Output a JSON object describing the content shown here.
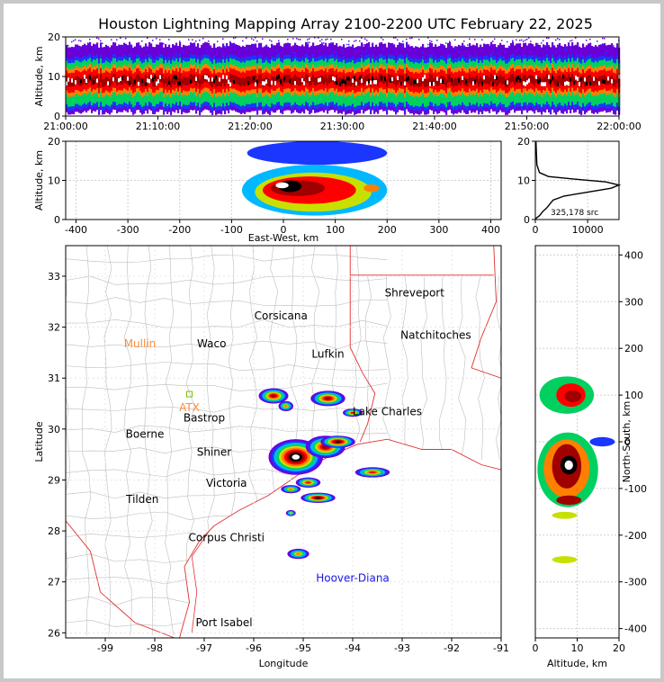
{
  "title": "Houston Lightning Mapping Array 2100-2200 UTC February 22, 2025",
  "colors": {
    "map_border": "#e03030",
    "county": "#bdbdbd",
    "station_lma": "#000000",
    "station_other": "#ff8c3a",
    "station_marker": "#7ac000",
    "hoover_diana": "#1a1adc",
    "density_scale": [
      "#6a00d8",
      "#1a36ff",
      "#00b8ff",
      "#00d060",
      "#c8e000",
      "#ff8000",
      "#ff0000",
      "#a00000",
      "#000000",
      "#ffffff"
    ]
  },
  "chart_data": [
    {
      "id": "time-height",
      "type": "heatmap",
      "xlabel": "",
      "ylabel": "Altitude, km",
      "xlim": [
        "21:00:00",
        "22:00:00"
      ],
      "ylim": [
        0,
        20
      ],
      "xticks": [
        "21:00:00",
        "21:10:00",
        "21:20:00",
        "21:30:00",
        "21:40:00",
        "21:50:00",
        "22:00:00"
      ],
      "yticks": [
        0,
        10,
        20
      ],
      "band_altitude_km": {
        "core": [
          7,
          11
        ],
        "outer": [
          2,
          15
        ]
      }
    },
    {
      "id": "east-west-altitude",
      "type": "heatmap",
      "xlabel": "East-West, km",
      "ylabel": "Altitude, km",
      "xlim": [
        -420,
        420
      ],
      "ylim": [
        0,
        20
      ],
      "xticks": [
        -400,
        -300,
        -200,
        -100,
        0,
        100,
        200,
        300,
        400
      ],
      "yticks": [
        0,
        10,
        20
      ],
      "cells": [
        {
          "x": [
            -80,
            200
          ],
          "y": [
            1,
            14
          ],
          "level": 2
        },
        {
          "x": [
            -55,
            170
          ],
          "y": [
            2,
            12
          ],
          "level": 4
        },
        {
          "x": [
            -40,
            140
          ],
          "y": [
            4,
            11
          ],
          "level": 6
        },
        {
          "x": [
            -25,
            80
          ],
          "y": [
            6,
            10
          ],
          "level": 7
        },
        {
          "x": [
            -10,
            35
          ],
          "y": [
            7,
            10
          ],
          "level": 8
        },
        {
          "x": [
            -15,
            10
          ],
          "y": [
            8,
            9.5
          ],
          "level": 9
        },
        {
          "x": [
            155,
            185
          ],
          "y": [
            7,
            9
          ],
          "level": 5
        },
        {
          "x": [
            -70,
            200
          ],
          "y": [
            14,
            20
          ],
          "level": 1
        }
      ]
    },
    {
      "id": "altitude-histogram",
      "type": "line",
      "annotation": "325,178 src",
      "xlim": [
        0,
        16000
      ],
      "ylim": [
        0,
        20
      ],
      "xticks": [
        0,
        10000
      ],
      "yticks": [
        0,
        10,
        20
      ],
      "points": [
        [
          60,
          0.2
        ],
        [
          800,
          1
        ],
        [
          1400,
          2
        ],
        [
          2200,
          3
        ],
        [
          2800,
          4
        ],
        [
          3400,
          5
        ],
        [
          5500,
          6
        ],
        [
          10000,
          7
        ],
        [
          14500,
          8
        ],
        [
          16000,
          8.8
        ],
        [
          13500,
          9.6
        ],
        [
          7000,
          10.4
        ],
        [
          2500,
          11
        ],
        [
          800,
          12
        ],
        [
          300,
          14
        ],
        [
          200,
          17
        ],
        [
          120,
          20
        ]
      ]
    },
    {
      "id": "plan-map",
      "type": "scatter",
      "xlabel": "Longitude",
      "ylabel": "Latitude",
      "xlim": [
        -99.8,
        -91
      ],
      "ylim": [
        25.9,
        33.6
      ],
      "xticks": [
        -99,
        -98,
        -97,
        -96,
        -95,
        -94,
        -93,
        -92,
        -91
      ],
      "yticks": [
        26,
        27,
        28,
        29,
        30,
        31,
        32,
        33
      ],
      "cities": [
        {
          "name": "Shreveport",
          "lon": -92.75,
          "lat": 32.6,
          "kind": "city"
        },
        {
          "name": "Corsicana",
          "lon": -95.45,
          "lat": 32.15,
          "kind": "city"
        },
        {
          "name": "Mullin",
          "lon": -98.3,
          "lat": 31.6,
          "kind": "other"
        },
        {
          "name": "Waco",
          "lon": -96.85,
          "lat": 31.6,
          "kind": "city"
        },
        {
          "name": "Natchitoches",
          "lon": -92.32,
          "lat": 31.77,
          "kind": "city"
        },
        {
          "name": "Lufkin",
          "lon": -94.5,
          "lat": 31.4,
          "kind": "city"
        },
        {
          "name": "ATX",
          "lon": -97.3,
          "lat": 30.35,
          "kind": "other"
        },
        {
          "name": "Bastrop",
          "lon": -97.0,
          "lat": 30.15,
          "kind": "city"
        },
        {
          "name": "Lake Charles",
          "lon": -93.3,
          "lat": 30.27,
          "kind": "city"
        },
        {
          "name": "Boerne",
          "lon": -98.2,
          "lat": 29.83,
          "kind": "city"
        },
        {
          "name": "Shiner",
          "lon": -96.8,
          "lat": 29.48,
          "kind": "city"
        },
        {
          "name": "Victoria",
          "lon": -96.55,
          "lat": 28.87,
          "kind": "city"
        },
        {
          "name": "Tilden",
          "lon": -98.25,
          "lat": 28.55,
          "kind": "city"
        },
        {
          "name": "Corpus Christi",
          "lon": -96.55,
          "lat": 27.8,
          "kind": "city"
        },
        {
          "name": "Hoover-Diana",
          "lon": -94.0,
          "lat": 27.0,
          "kind": "platform"
        },
        {
          "name": "Port Isabel",
          "lon": -96.6,
          "lat": 26.13,
          "kind": "city"
        }
      ],
      "storms": [
        {
          "lon": -95.15,
          "lat": 29.45,
          "rx": 0.55,
          "ry": 0.35,
          "peak": 9
        },
        {
          "lon": -94.55,
          "lat": 29.65,
          "rx": 0.4,
          "ry": 0.22,
          "peak": 7
        },
        {
          "lon": -94.3,
          "lat": 29.75,
          "rx": 0.35,
          "ry": 0.12,
          "peak": 8
        },
        {
          "lon": -94.5,
          "lat": 30.6,
          "rx": 0.35,
          "ry": 0.15,
          "peak": 7
        },
        {
          "lon": -95.6,
          "lat": 30.65,
          "rx": 0.3,
          "ry": 0.15,
          "peak": 7
        },
        {
          "lon": -95.35,
          "lat": 30.45,
          "rx": 0.15,
          "ry": 0.1,
          "peak": 5
        },
        {
          "lon": -94.0,
          "lat": 30.32,
          "rx": 0.2,
          "ry": 0.08,
          "peak": 6
        },
        {
          "lon": -93.6,
          "lat": 29.15,
          "rx": 0.35,
          "ry": 0.1,
          "peak": 6
        },
        {
          "lon": -94.7,
          "lat": 28.65,
          "rx": 0.35,
          "ry": 0.1,
          "peak": 8
        },
        {
          "lon": -94.9,
          "lat": 28.95,
          "rx": 0.25,
          "ry": 0.1,
          "peak": 6
        },
        {
          "lon": -95.25,
          "lat": 28.82,
          "rx": 0.2,
          "ry": 0.08,
          "peak": 5
        },
        {
          "lon": -95.1,
          "lat": 27.55,
          "rx": 0.22,
          "ry": 0.1,
          "peak": 5
        },
        {
          "lon": -95.25,
          "lat": 28.35,
          "rx": 0.1,
          "ry": 0.06,
          "peak": 4
        }
      ]
    },
    {
      "id": "altitude-north-south",
      "type": "heatmap",
      "xlabel": "Altitude, km",
      "ylabel": "North-South, km",
      "xlim": [
        0,
        20
      ],
      "ylim": [
        -420,
        420
      ],
      "xticks": [
        0,
        10,
        20
      ],
      "yticks": [
        -400,
        -300,
        -200,
        -100,
        0,
        100,
        200,
        300,
        400
      ],
      "cells": [
        {
          "y": [
            60,
            140
          ],
          "x": [
            1,
            14
          ],
          "level": 3
        },
        {
          "y": [
            75,
            125
          ],
          "x": [
            5,
            12
          ],
          "level": 6
        },
        {
          "y": [
            85,
            110
          ],
          "x": [
            7,
            11
          ],
          "level": 7
        },
        {
          "y": [
            -140,
            20
          ],
          "x": [
            0.5,
            15
          ],
          "level": 3
        },
        {
          "y": [
            -120,
            5
          ],
          "x": [
            2,
            13
          ],
          "level": 5
        },
        {
          "y": [
            -100,
            -5
          ],
          "x": [
            4,
            11
          ],
          "level": 7
        },
        {
          "y": [
            -70,
            -30
          ],
          "x": [
            6,
            10
          ],
          "level": 8
        },
        {
          "y": [
            -60,
            -40
          ],
          "x": [
            7,
            9
          ],
          "level": 9
        },
        {
          "y": [
            -135,
            -115
          ],
          "x": [
            5,
            11
          ],
          "level": 7
        },
        {
          "y": [
            -165,
            -150
          ],
          "x": [
            4,
            10
          ],
          "level": 4
        },
        {
          "y": [
            -260,
            -245
          ],
          "x": [
            4,
            10
          ],
          "level": 4
        },
        {
          "y": [
            -10,
            10
          ],
          "x": [
            13,
            19
          ],
          "level": 1
        }
      ]
    }
  ]
}
